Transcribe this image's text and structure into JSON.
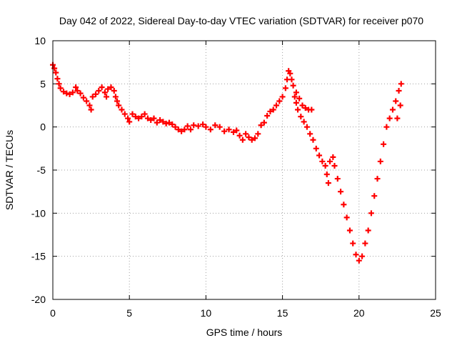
{
  "chart_data": {
    "type": "scatter",
    "title": "Day 042 of 2022, Sidereal Day-to-day VTEC variation (SDTVAR) for receiver p070",
    "xlabel": "GPS time / hours",
    "ylabel": "SDTVAR / TECUs",
    "xlim": [
      0,
      25
    ],
    "ylim": [
      -20,
      10
    ],
    "xticks": [
      0,
      5,
      10,
      15,
      20,
      25
    ],
    "yticks": [
      10,
      5,
      0,
      -5,
      -10,
      -15,
      -20
    ],
    "grid": true,
    "marker": "+",
    "color": "#ff0000",
    "series": [
      {
        "name": "SDTVAR",
        "points": [
          [
            0.0,
            7.2
          ],
          [
            0.1,
            6.8
          ],
          [
            0.2,
            6.3
          ],
          [
            0.3,
            5.6
          ],
          [
            0.4,
            5.0
          ],
          [
            0.5,
            4.5
          ],
          [
            0.7,
            4.1
          ],
          [
            0.9,
            3.9
          ],
          [
            1.1,
            3.8
          ],
          [
            1.3,
            4.0
          ],
          [
            1.5,
            4.6
          ],
          [
            1.6,
            4.2
          ],
          [
            1.8,
            3.9
          ],
          [
            2.0,
            3.4
          ],
          [
            2.2,
            3.0
          ],
          [
            2.4,
            2.5
          ],
          [
            2.5,
            2.0
          ],
          [
            2.6,
            3.5
          ],
          [
            2.8,
            3.8
          ],
          [
            3.0,
            4.2
          ],
          [
            3.2,
            4.6
          ],
          [
            3.4,
            4.0
          ],
          [
            3.5,
            3.5
          ],
          [
            3.6,
            4.4
          ],
          [
            3.8,
            4.6
          ],
          [
            4.0,
            4.2
          ],
          [
            4.1,
            3.5
          ],
          [
            4.2,
            3.0
          ],
          [
            4.3,
            2.5
          ],
          [
            4.5,
            2.0
          ],
          [
            4.7,
            1.5
          ],
          [
            4.9,
            1.0
          ],
          [
            5.0,
            0.6
          ],
          [
            5.2,
            1.5
          ],
          [
            5.4,
            1.2
          ],
          [
            5.6,
            1.0
          ],
          [
            5.8,
            1.2
          ],
          [
            6.0,
            1.5
          ],
          [
            6.2,
            1.0
          ],
          [
            6.4,
            0.8
          ],
          [
            6.6,
            1.0
          ],
          [
            6.8,
            0.5
          ],
          [
            7.0,
            0.8
          ],
          [
            7.2,
            0.6
          ],
          [
            7.4,
            0.4
          ],
          [
            7.6,
            0.5
          ],
          [
            7.8,
            0.3
          ],
          [
            8.0,
            0.0
          ],
          [
            8.2,
            -0.3
          ],
          [
            8.4,
            -0.5
          ],
          [
            8.6,
            -0.3
          ],
          [
            8.8,
            0.1
          ],
          [
            9.0,
            -0.3
          ],
          [
            9.2,
            0.2
          ],
          [
            9.5,
            0.1
          ],
          [
            9.8,
            0.3
          ],
          [
            10.0,
            0.0
          ],
          [
            10.3,
            -0.3
          ],
          [
            10.6,
            0.2
          ],
          [
            10.9,
            0.0
          ],
          [
            11.2,
            -0.5
          ],
          [
            11.5,
            -0.3
          ],
          [
            11.8,
            -0.6
          ],
          [
            12.0,
            -0.4
          ],
          [
            12.2,
            -1.0
          ],
          [
            12.4,
            -1.5
          ],
          [
            12.6,
            -0.8
          ],
          [
            12.8,
            -1.2
          ],
          [
            13.0,
            -1.5
          ],
          [
            13.2,
            -1.3
          ],
          [
            13.4,
            -0.8
          ],
          [
            13.6,
            0.2
          ],
          [
            13.8,
            0.5
          ],
          [
            14.0,
            1.3
          ],
          [
            14.2,
            1.8
          ],
          [
            14.4,
            2.0
          ],
          [
            14.6,
            2.5
          ],
          [
            14.8,
            3.0
          ],
          [
            15.0,
            3.5
          ],
          [
            15.2,
            4.5
          ],
          [
            15.3,
            5.5
          ],
          [
            15.4,
            6.5
          ],
          [
            15.5,
            6.2
          ],
          [
            15.6,
            5.5
          ],
          [
            15.7,
            4.8
          ],
          [
            15.9,
            4.0
          ],
          [
            16.1,
            3.3
          ],
          [
            16.3,
            2.5
          ],
          [
            16.5,
            2.2
          ],
          [
            16.7,
            2.0
          ],
          [
            16.9,
            2.0
          ],
          [
            15.8,
            3.5
          ],
          [
            15.9,
            2.8
          ],
          [
            16.0,
            2.0
          ],
          [
            16.2,
            1.2
          ],
          [
            16.4,
            0.6
          ],
          [
            16.6,
            0.0
          ],
          [
            16.8,
            -0.8
          ],
          [
            17.0,
            -1.5
          ],
          [
            17.2,
            -2.5
          ],
          [
            17.4,
            -3.3
          ],
          [
            17.6,
            -4.0
          ],
          [
            17.8,
            -4.5
          ],
          [
            17.9,
            -5.5
          ],
          [
            18.0,
            -6.5
          ],
          [
            18.1,
            -4.0
          ],
          [
            18.3,
            -3.5
          ],
          [
            18.4,
            -4.5
          ],
          [
            18.6,
            -6.0
          ],
          [
            18.8,
            -7.5
          ],
          [
            19.0,
            -9.0
          ],
          [
            19.2,
            -10.5
          ],
          [
            19.4,
            -12.0
          ],
          [
            19.6,
            -13.5
          ],
          [
            19.8,
            -14.8
          ],
          [
            20.0,
            -15.5
          ],
          [
            20.2,
            -15.0
          ],
          [
            20.4,
            -13.5
          ],
          [
            20.6,
            -12.0
          ],
          [
            20.8,
            -10.0
          ],
          [
            21.0,
            -8.0
          ],
          [
            21.2,
            -6.0
          ],
          [
            21.4,
            -4.0
          ],
          [
            21.6,
            -2.0
          ],
          [
            21.8,
            0.0
          ],
          [
            22.0,
            1.0
          ],
          [
            22.2,
            2.0
          ],
          [
            22.4,
            3.0
          ],
          [
            22.6,
            4.2
          ],
          [
            22.75,
            5.0
          ],
          [
            22.7,
            2.5
          ],
          [
            22.5,
            1.0
          ]
        ]
      }
    ]
  }
}
